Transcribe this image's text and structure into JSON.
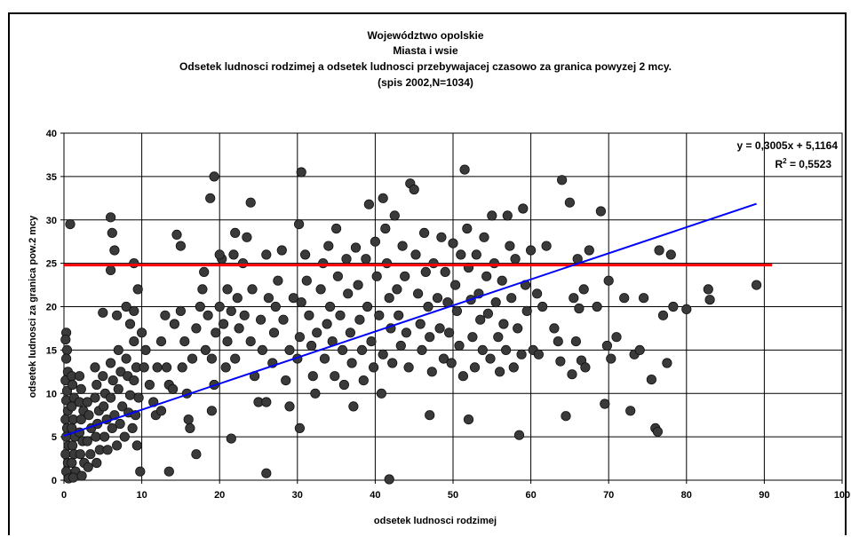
{
  "chart_data": {
    "type": "scatter",
    "title_lines": [
      "Województwo opolskie",
      "Miasta i wsie",
      "Odsetek ludnosci rodzimej a odsetek ludnosci  przebywajacej czasowo za granica powyzej 2 mcy.",
      "(spis 2002,N=1034)"
    ],
    "xlabel": "odsetek ludnosci rodzimej",
    "ylabel": "odsetek ludnosci za granica pow.2 mcy",
    "xlim": [
      0,
      100
    ],
    "ylim": [
      0,
      40
    ],
    "x_ticks": [
      "0",
      "10",
      "20",
      "30",
      "40",
      "50",
      "60",
      "70",
      "80",
      "90",
      "100"
    ],
    "y_ticks": [
      "0",
      "5",
      "10",
      "15",
      "20",
      "25",
      "30",
      "35",
      "40"
    ],
    "grid": true,
    "trendline": {
      "equation": "y = 0,3005x + 5,1164",
      "r2_prefix": "R",
      "r2_sup": "2",
      "r2_value": " = 0,5523",
      "slope": 0.3005,
      "intercept": 5.1164,
      "x_range": [
        0,
        89
      ],
      "color": "#0000ff"
    },
    "reference_line": {
      "y": 24.8,
      "x_range": [
        0,
        91
      ],
      "color": "#ff0000"
    },
    "marker_color": "#3a3a3a",
    "points": [
      [
        0.3,
        17
      ],
      [
        0.2,
        16.2
      ],
      [
        0.4,
        15
      ],
      [
        0.3,
        14
      ],
      [
        0.5,
        12.5
      ],
      [
        0.2,
        11.5
      ],
      [
        0.4,
        10.3
      ],
      [
        0.3,
        9.2
      ],
      [
        0.5,
        8
      ],
      [
        0.2,
        7
      ],
      [
        0.4,
        6
      ],
      [
        0.3,
        5
      ],
      [
        0.6,
        4
      ],
      [
        0.2,
        3
      ],
      [
        0.5,
        2
      ],
      [
        0.3,
        1
      ],
      [
        0.6,
        0.2
      ],
      [
        1,
        12
      ],
      [
        1.1,
        11
      ],
      [
        1.3,
        9.5
      ],
      [
        1,
        8.5
      ],
      [
        1.2,
        7
      ],
      [
        1,
        6
      ],
      [
        1.4,
        5
      ],
      [
        1.1,
        4
      ],
      [
        1.3,
        3
      ],
      [
        1,
        2
      ],
      [
        1.5,
        1
      ],
      [
        1.2,
        0.3
      ],
      [
        2,
        12
      ],
      [
        2.2,
        10.5
      ],
      [
        2,
        9
      ],
      [
        2.5,
        8
      ],
      [
        2.2,
        7
      ],
      [
        2,
        5.5
      ],
      [
        2.4,
        4.5
      ],
      [
        2.1,
        3
      ],
      [
        2.6,
        2
      ],
      [
        2.3,
        0.5
      ],
      [
        3,
        9
      ],
      [
        3.2,
        7.5
      ],
      [
        3.5,
        6
      ],
      [
        3,
        4.5
      ],
      [
        3.4,
        3
      ],
      [
        3.1,
        1.5
      ],
      [
        4,
        13
      ],
      [
        4.2,
        11
      ],
      [
        4,
        9.5
      ],
      [
        4.5,
        8
      ],
      [
        4.3,
        6.5
      ],
      [
        4.1,
        5
      ],
      [
        4.6,
        3.5
      ],
      [
        4.2,
        2
      ],
      [
        5,
        12
      ],
      [
        5.3,
        10
      ],
      [
        5.1,
        8.5
      ],
      [
        5.5,
        7
      ],
      [
        5.2,
        5
      ],
      [
        5.6,
        3.5
      ],
      [
        6,
        13.5
      ],
      [
        6.3,
        11.5
      ],
      [
        6,
        9.5
      ],
      [
        6.5,
        7.5
      ],
      [
        6.2,
        6
      ],
      [
        6.8,
        4
      ],
      [
        7,
        15
      ],
      [
        7.3,
        12.5
      ],
      [
        7,
        10.5
      ],
      [
        7.5,
        8.5
      ],
      [
        7.2,
        6.5
      ],
      [
        7.8,
        5
      ],
      [
        8,
        14
      ],
      [
        8.2,
        12
      ],
      [
        8.5,
        9.8
      ],
      [
        8.3,
        7.8
      ],
      [
        8.8,
        6
      ],
      [
        9,
        16
      ],
      [
        9.3,
        13
      ],
      [
        9,
        11.5
      ],
      [
        9.6,
        9.5
      ],
      [
        9.2,
        7.5
      ],
      [
        9.4,
        4
      ],
      [
        9.8,
        1
      ],
      [
        0.8,
        29.5
      ],
      [
        6,
        30.3
      ],
      [
        6.2,
        28.5
      ],
      [
        6.5,
        26.5
      ],
      [
        6,
        24.2
      ],
      [
        5,
        19.3
      ],
      [
        6.8,
        19
      ],
      [
        8,
        20
      ],
      [
        8.5,
        18
      ],
      [
        9,
        25
      ],
      [
        9.5,
        22
      ],
      [
        9,
        19.5
      ],
      [
        10,
        17
      ],
      [
        10.5,
        15
      ],
      [
        10.3,
        13
      ],
      [
        11,
        11
      ],
      [
        11.5,
        9
      ],
      [
        11.8,
        7.5
      ],
      [
        12.5,
        8
      ],
      [
        12,
        13
      ],
      [
        12.5,
        16
      ],
      [
        13,
        19
      ],
      [
        13.2,
        13
      ],
      [
        13.5,
        11
      ],
      [
        14,
        10.5
      ],
      [
        14.2,
        18
      ],
      [
        14.5,
        28.3
      ],
      [
        15,
        27
      ],
      [
        15,
        19.5
      ],
      [
        15.5,
        16
      ],
      [
        15.2,
        13
      ],
      [
        15.8,
        10
      ],
      [
        16,
        7
      ],
      [
        16.5,
        14
      ],
      [
        17,
        17.5
      ],
      [
        17.5,
        20
      ],
      [
        17.8,
        22
      ],
      [
        18,
        24
      ],
      [
        18.5,
        19
      ],
      [
        18.2,
        15
      ],
      [
        16.2,
        6
      ],
      [
        13.5,
        1
      ],
      [
        17,
        3
      ],
      [
        19,
        14
      ],
      [
        19.3,
        11
      ],
      [
        19,
        8
      ],
      [
        19.5,
        17
      ],
      [
        20,
        20
      ],
      [
        20.3,
        25.5
      ],
      [
        20.5,
        18
      ],
      [
        20.8,
        13
      ],
      [
        21,
        16
      ],
      [
        21.5,
        19.5
      ],
      [
        21,
        22
      ],
      [
        21.8,
        26
      ],
      [
        22,
        14
      ],
      [
        22.5,
        17.5
      ],
      [
        22.3,
        21
      ],
      [
        23,
        25
      ],
      [
        23.5,
        28
      ],
      [
        23.2,
        19
      ],
      [
        24,
        16
      ],
      [
        24.2,
        22
      ],
      [
        24.5,
        12
      ],
      [
        25,
        9
      ],
      [
        25.3,
        18.5
      ],
      [
        25.5,
        15
      ],
      [
        26,
        26
      ],
      [
        26.3,
        21
      ],
      [
        26,
        9
      ],
      [
        26.8,
        13.5
      ],
      [
        27,
        17
      ],
      [
        27.5,
        23
      ],
      [
        27.2,
        20
      ],
      [
        18.8,
        32.5
      ],
      [
        19.3,
        35
      ],
      [
        20,
        26
      ],
      [
        22,
        28.5
      ],
      [
        24,
        32
      ],
      [
        21.5,
        4.8
      ],
      [
        26,
        0.8
      ],
      [
        28,
        26.5
      ],
      [
        28.2,
        18.5
      ],
      [
        28.5,
        11.5
      ],
      [
        29,
        15
      ],
      [
        29.5,
        21
      ],
      [
        29,
        8.5
      ],
      [
        30,
        14
      ],
      [
        30.3,
        16.5
      ],
      [
        30.5,
        20.5
      ],
      [
        30.2,
        29.5
      ],
      [
        30.5,
        35.5
      ],
      [
        31,
        26
      ],
      [
        31.2,
        23
      ],
      [
        31.5,
        19
      ],
      [
        31.8,
        15.5
      ],
      [
        32,
        12
      ],
      [
        32.3,
        10
      ],
      [
        32.5,
        17
      ],
      [
        33,
        22
      ],
      [
        33.3,
        25
      ],
      [
        33.5,
        14
      ],
      [
        33.8,
        18
      ],
      [
        34,
        27
      ],
      [
        34.2,
        20
      ],
      [
        34.5,
        16
      ],
      [
        34.8,
        12
      ],
      [
        35,
        29
      ],
      [
        35.2,
        23.5
      ],
      [
        35.5,
        19
      ],
      [
        35.8,
        15
      ],
      [
        36,
        11
      ],
      [
        36.3,
        25.5
      ],
      [
        36.5,
        21.5
      ],
      [
        36.8,
        17
      ],
      [
        37,
        13.5
      ],
      [
        37.2,
        8.5
      ],
      [
        37.5,
        26.8
      ],
      [
        37.8,
        22.5
      ],
      [
        38,
        18.5
      ],
      [
        38.3,
        15
      ],
      [
        38.5,
        11.5
      ],
      [
        38.8,
        25.5
      ],
      [
        39,
        20
      ],
      [
        39.2,
        31.8
      ],
      [
        39.5,
        16
      ],
      [
        39.8,
        13
      ],
      [
        40,
        27.5
      ],
      [
        40.2,
        23.5
      ],
      [
        40.5,
        19
      ],
      [
        40.8,
        10
      ],
      [
        41,
        14.5
      ],
      [
        30.3,
        6
      ],
      [
        41,
        32.5
      ],
      [
        41.3,
        29
      ],
      [
        41.5,
        25
      ],
      [
        41.8,
        21
      ],
      [
        42,
        17.5
      ],
      [
        42.2,
        13.5
      ],
      [
        42.5,
        30.5
      ],
      [
        42.8,
        22
      ],
      [
        43,
        19
      ],
      [
        43.3,
        15.5
      ],
      [
        43.5,
        27
      ],
      [
        43.8,
        23.5
      ],
      [
        44,
        17
      ],
      [
        44.3,
        13
      ],
      [
        44.5,
        34.2
      ],
      [
        45,
        33.5
      ],
      [
        45.2,
        26
      ],
      [
        45.5,
        21.5
      ],
      [
        45.8,
        18
      ],
      [
        46,
        15
      ],
      [
        46.3,
        28.5
      ],
      [
        46.5,
        24
      ],
      [
        46.8,
        20
      ],
      [
        47,
        16.5
      ],
      [
        47.3,
        12.5
      ],
      [
        47.5,
        25
      ],
      [
        48,
        21
      ],
      [
        48.3,
        17.5
      ],
      [
        48.5,
        28
      ],
      [
        48.8,
        14
      ],
      [
        41.8,
        0.1
      ],
      [
        47,
        7.5
      ],
      [
        49,
        24
      ],
      [
        49.3,
        20.5
      ],
      [
        49.5,
        17
      ],
      [
        49.8,
        13.5
      ],
      [
        50,
        27.3
      ],
      [
        50.3,
        22.5
      ],
      [
        50.5,
        19.5
      ],
      [
        50.8,
        15.5
      ],
      [
        51,
        26
      ],
      [
        51.3,
        12
      ],
      [
        51.5,
        35.8
      ],
      [
        51.8,
        29
      ],
      [
        52,
        24.5
      ],
      [
        52.3,
        20.8
      ],
      [
        52.5,
        16.5
      ],
      [
        52.8,
        13
      ],
      [
        53,
        26
      ],
      [
        53.3,
        21.5
      ],
      [
        53.5,
        18.5
      ],
      [
        53.8,
        15
      ],
      [
        54,
        28
      ],
      [
        54.3,
        23.5
      ],
      [
        54.5,
        19.2
      ],
      [
        54.8,
        14
      ],
      [
        55,
        30.5
      ],
      [
        55.3,
        25
      ],
      [
        55.5,
        20.5
      ],
      [
        55.8,
        16.5
      ],
      [
        52,
        7
      ],
      [
        56,
        12.5
      ],
      [
        56.3,
        23
      ],
      [
        56.5,
        18
      ],
      [
        56.8,
        15
      ],
      [
        57,
        30.5
      ],
      [
        57.3,
        27
      ],
      [
        57.5,
        21
      ],
      [
        57.8,
        13
      ],
      [
        58,
        25.5
      ],
      [
        58.3,
        17.5
      ],
      [
        58.5,
        5.2
      ],
      [
        58.8,
        14.5
      ],
      [
        59,
        31.3
      ],
      [
        59.3,
        22.5
      ],
      [
        59.5,
        19.5
      ],
      [
        60,
        26.5
      ],
      [
        60.3,
        15
      ],
      [
        60.8,
        21.5
      ],
      [
        61,
        14.5
      ],
      [
        61.5,
        20
      ],
      [
        62,
        27
      ],
      [
        63,
        17.5
      ],
      [
        63.5,
        16
      ],
      [
        63.8,
        13.7
      ],
      [
        64,
        34.6
      ],
      [
        64.5,
        7.4
      ],
      [
        65,
        32
      ],
      [
        65.3,
        12.2
      ],
      [
        65.5,
        21
      ],
      [
        65.8,
        16
      ],
      [
        66,
        25.5
      ],
      [
        66.2,
        19.8
      ],
      [
        66.5,
        13.8
      ],
      [
        66.8,
        22
      ],
      [
        67,
        13
      ],
      [
        67.5,
        26.5
      ],
      [
        68.5,
        20
      ],
      [
        69,
        31
      ],
      [
        69.5,
        8.8
      ],
      [
        69.8,
        15.5
      ],
      [
        70,
        23
      ],
      [
        70.3,
        14
      ],
      [
        71,
        16.5
      ],
      [
        72,
        21
      ],
      [
        72.8,
        8
      ],
      [
        73.3,
        14.5
      ],
      [
        74,
        15
      ],
      [
        74.5,
        21
      ],
      [
        75.5,
        11.6
      ],
      [
        76,
        6
      ],
      [
        76.3,
        5.6
      ],
      [
        76.5,
        26.5
      ],
      [
        77,
        19
      ],
      [
        77.5,
        13.5
      ],
      [
        78,
        26
      ],
      [
        78.3,
        20
      ],
      [
        80,
        19.7
      ],
      [
        82.8,
        22
      ],
      [
        83,
        20.8
      ],
      [
        89,
        22.5
      ]
    ]
  }
}
